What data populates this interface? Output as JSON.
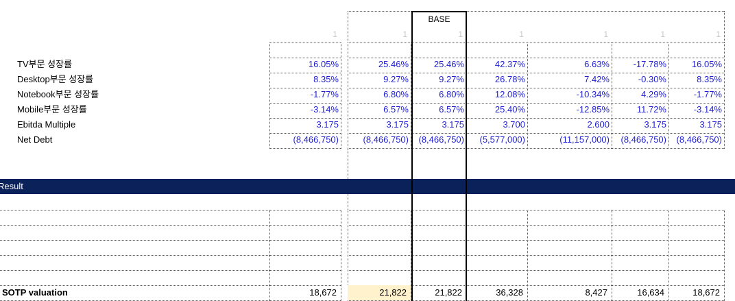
{
  "header": {
    "base_label": "BASE"
  },
  "scenario_flags": [
    "1",
    "1",
    "1",
    "1",
    "1",
    "1",
    "1"
  ],
  "rows": [
    {
      "label": "TV부문 성장률",
      "values": [
        "16.05%",
        "25.46%",
        "25.46%",
        "42.37%",
        "6.63%",
        "-17.78%",
        "16.05%"
      ]
    },
    {
      "label": "Desktop부문 성장률",
      "values": [
        "8.35%",
        "9.27%",
        "9.27%",
        "26.78%",
        "7.42%",
        "-0.30%",
        "8.35%"
      ]
    },
    {
      "label": "Notebook부문 성장률",
      "values": [
        "-1.77%",
        "6.80%",
        "6.80%",
        "12.08%",
        "-10.34%",
        "4.29%",
        "-1.77%"
      ]
    },
    {
      "label": "Mobile부문 성장률",
      "values": [
        "-3.14%",
        "6.57%",
        "6.57%",
        "25.40%",
        "-12.85%",
        "11.72%",
        "-3.14%"
      ]
    },
    {
      "label": "Ebitda Multiple",
      "values": [
        "3.175",
        "3.175",
        "3.175",
        "3.700",
        "2.600",
        "3.175",
        "3.175"
      ]
    },
    {
      "label": "Net Debt",
      "values": [
        "(8,466,750)",
        "(8,466,750)",
        "(8,466,750)",
        "(5,577,000)",
        "(11,157,000)",
        "(8,466,750)",
        "(8,466,750)"
      ]
    }
  ],
  "result": {
    "title": "Result",
    "sotp_label": "SOTP valuation",
    "sotp_values": [
      "18,672",
      "21,822",
      "21,822",
      "36,328",
      "8,427",
      "16,634",
      "18,672"
    ]
  },
  "colors": {
    "banner": "#0a215a",
    "input_blue": "#1f1fd0",
    "highlight": "#fff2cc"
  }
}
